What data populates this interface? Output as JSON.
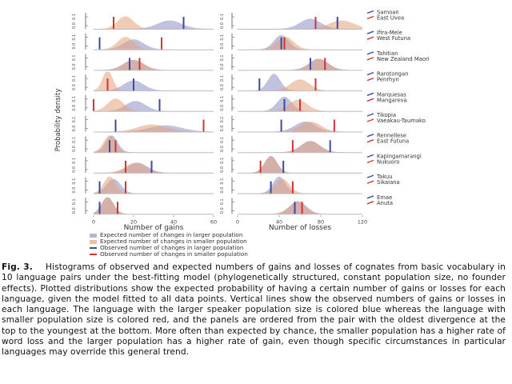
{
  "chart_data": {
    "type": "area",
    "ylabel": "Probability density",
    "colors": {
      "larger_fill": "#8c8fc4",
      "smaller_fill": "#e3a27c",
      "larger_line": "#3a4aa0",
      "smaller_line": "#d0343a"
    },
    "legend": [
      "Expected number of changes in larger population",
      "Expected number of changes in smaller population",
      "Observed number of changes in larger population",
      "Observed number of changes in smaller population"
    ],
    "panel_y_ticks": [
      "0.0",
      "0.1"
    ],
    "gains": {
      "xlabel": "Number of gains",
      "xlim": [
        0,
        60
      ],
      "xticks": [
        "0",
        "20",
        "40",
        "60"
      ],
      "ylim": [
        0,
        0.14
      ],
      "panels": [
        {
          "larger": {
            "mean": 38,
            "sd": 6,
            "observed": 45
          },
          "smaller": {
            "mean": 16,
            "sd": 4,
            "observed": 10
          }
        },
        {
          "larger": {
            "mean": 20,
            "sd": 5,
            "observed": 3
          },
          "smaller": {
            "mean": 16,
            "sd": 4,
            "observed": 34
          }
        },
        {
          "larger": {
            "mean": 20,
            "sd": 5,
            "observed": 18
          },
          "smaller": {
            "mean": 20,
            "sd": 5,
            "observed": 23
          }
        },
        {
          "larger": {
            "mean": 20,
            "sd": 5,
            "observed": 20
          },
          "smaller": {
            "mean": 7,
            "sd": 2.5,
            "observed": 7
          }
        },
        {
          "larger": {
            "mean": 21,
            "sd": 5,
            "observed": 33
          },
          "smaller": {
            "mean": 11,
            "sd": 4,
            "observed": 0
          }
        },
        {
          "larger": {
            "mean": 36,
            "sd": 8,
            "observed": 11
          },
          "smaller": {
            "mean": 29,
            "sd": 7,
            "observed": 55
          }
        },
        {
          "larger": {
            "mean": 9,
            "sd": 3,
            "observed": 8
          },
          "smaller": {
            "mean": 8,
            "sd": 3,
            "observed": 11
          }
        },
        {
          "larger": {
            "mean": 22,
            "sd": 5,
            "observed": 29
          },
          "smaller": {
            "mean": 21,
            "sd": 5,
            "observed": 16
          }
        },
        {
          "larger": {
            "mean": 10,
            "sd": 3.5,
            "observed": 3
          },
          "smaller": {
            "mean": 8,
            "sd": 3,
            "observed": 16
          }
        },
        {
          "larger": {
            "mean": 7,
            "sd": 3,
            "observed": 3
          },
          "smaller": {
            "mean": 7,
            "sd": 3,
            "observed": 12
          }
        }
      ]
    },
    "losses": {
      "xlabel": "Number of losses",
      "xlim": [
        0,
        120
      ],
      "xticks": [
        "0",
        "40",
        "80",
        "120"
      ],
      "ylim": [
        0,
        0.07
      ],
      "panels": [
        {
          "larger": {
            "mean": 70,
            "sd": 10,
            "observed": 96
          },
          "smaller": {
            "mean": 100,
            "sd": 12,
            "observed": 75
          }
        },
        {
          "larger": {
            "mean": 42,
            "sd": 7,
            "observed": 42
          },
          "smaller": {
            "mean": 46,
            "sd": 8,
            "observed": 45
          }
        },
        {
          "larger": {
            "mean": 78,
            "sd": 9,
            "observed": 70
          },
          "smaller": {
            "mean": 78,
            "sd": 9,
            "observed": 84
          }
        },
        {
          "larger": {
            "mean": 35,
            "sd": 6,
            "observed": 21
          },
          "smaller": {
            "mean": 60,
            "sd": 9,
            "observed": 75
          }
        },
        {
          "larger": {
            "mean": 45,
            "sd": 7,
            "observed": 45
          },
          "smaller": {
            "mean": 58,
            "sd": 9,
            "observed": 60
          }
        },
        {
          "larger": {
            "mean": 65,
            "sd": 10,
            "observed": 42
          },
          "smaller": {
            "mean": 70,
            "sd": 10,
            "observed": 93
          }
        },
        {
          "larger": {
            "mean": 70,
            "sd": 9,
            "observed": 89
          },
          "smaller": {
            "mean": 70,
            "sd": 9,
            "observed": 53
          }
        },
        {
          "larger": {
            "mean": 32,
            "sd": 6,
            "observed": 44
          },
          "smaller": {
            "mean": 32,
            "sd": 6,
            "observed": 22
          }
        },
        {
          "larger": {
            "mean": 40,
            "sd": 6,
            "observed": 32
          },
          "smaller": {
            "mean": 43,
            "sd": 7,
            "observed": 53
          }
        },
        {
          "larger": {
            "mean": 58,
            "sd": 8,
            "observed": 55
          },
          "smaller": {
            "mean": 58,
            "sd": 8,
            "observed": 62
          }
        }
      ]
    },
    "pairs": [
      {
        "larger": "Samoan",
        "smaller": "East Uvea"
      },
      {
        "larger": "Ifira-Mele",
        "smaller": "West Futuna"
      },
      {
        "larger": "Tahitian",
        "smaller": "New Zealand Maori"
      },
      {
        "larger": "Rarotongan",
        "smaller": "Penrhyn"
      },
      {
        "larger": "Marquesas",
        "smaller": "Mangareva"
      },
      {
        "larger": "Tikopia",
        "smaller": "Vaeakau-Taumako"
      },
      {
        "larger": "Rennellese",
        "smaller": "East Futuna"
      },
      {
        "larger": "Kapingamarangi",
        "smaller": "Nukuoro"
      },
      {
        "larger": "Takuu",
        "smaller": "Sikaiana"
      },
      {
        "larger": "Emae",
        "smaller": "Anuta"
      }
    ]
  },
  "caption": {
    "label": "Fig. 3.",
    "text": "Histograms of observed and expected numbers of gains and losses of cognates from basic vocabulary in 10 language pairs under the best-fitting model (phylogenetically structured, constant population size, no founder effects). Plotted distributions show the expected probability of having a certain number of gains or losses for each language, given the model fitted to all data points. Vertical lines show the observed numbers of gains or losses in each language. The language with the larger speaker population size is colored blue whereas the language with smaller population size is colored red, and the panels are ordered from the pair with the oldest divergence at the top to the youngest at the bottom. More often than expected by chance, the smaller population has a higher rate of word loss and the larger population has a higher rate of gain, even though specific circumstances in particular languages may override this general trend."
  }
}
